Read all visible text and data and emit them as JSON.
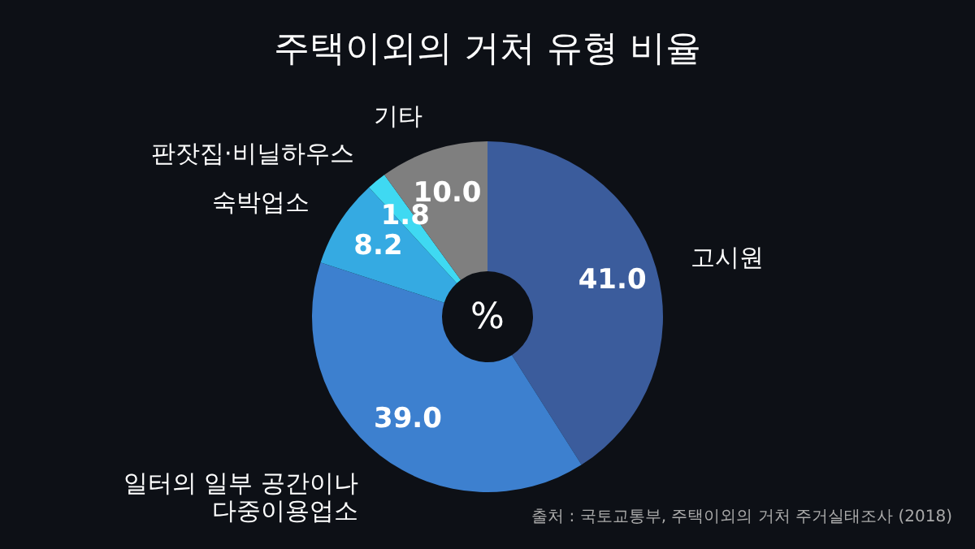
{
  "chart_data": {
    "type": "donut",
    "title": "주택이외의 거처 유형 비율",
    "categories": [
      "고시원",
      "일터의 일부 공간이나 다중이용업소",
      "숙박업소",
      "판잣집·비닐하우스",
      "기타"
    ],
    "values": [
      41.0,
      39.0,
      8.2,
      1.8,
      10.0
    ],
    "colors": [
      "#3b5c9c",
      "#3d80cf",
      "#35aae2",
      "#3fd9f2",
      "#7f7f7f"
    ],
    "value_labels": [
      "41.0",
      "39.0",
      "8.2",
      "1.8",
      "10.0"
    ],
    "annotations": [
      "%",
      "출처 : 국토교통부, 주택이외의 거처 주거실태조사 (2018)"
    ]
  }
}
